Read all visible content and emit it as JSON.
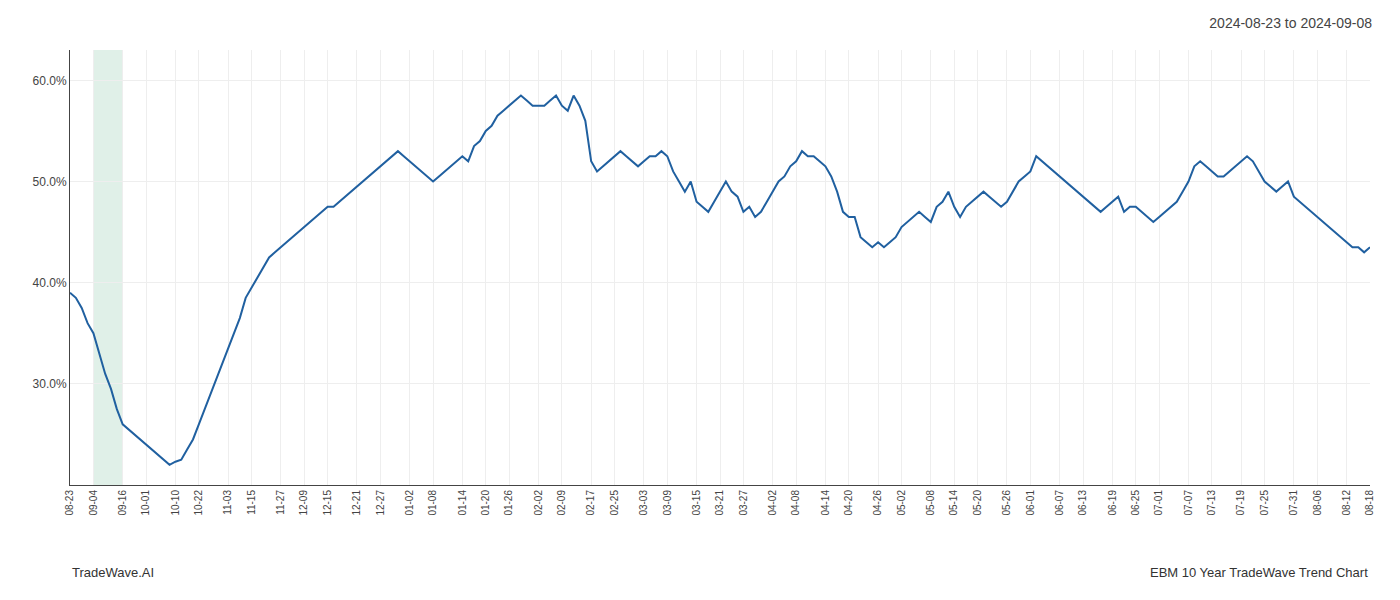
{
  "chart_data": {
    "type": "line",
    "title": "2024-08-23 to 2024-09-08",
    "annotations": [
      "TradeWave.AI",
      "EBM 10 Year TradeWave Trend Chart"
    ],
    "color": "#2060a0",
    "grid": true,
    "ylim": [
      20,
      63
    ],
    "yticks": [
      {
        "value": 30.0,
        "label": "30.0%"
      },
      {
        "value": 40.0,
        "label": "40.0%"
      },
      {
        "value": 50.0,
        "label": "50.0%"
      },
      {
        "value": 60.0,
        "label": "60.0%"
      }
    ],
    "highlight": {
      "from": "09-04",
      "to": "09-16",
      "color": "#e0f0e8"
    },
    "categories": [
      "08-23",
      null,
      null,
      null,
      "09-04",
      null,
      null,
      null,
      null,
      "09-16",
      null,
      null,
      null,
      "10-01",
      null,
      null,
      null,
      null,
      "10-10",
      null,
      null,
      null,
      "10-22",
      null,
      null,
      null,
      null,
      "11-03",
      null,
      null,
      null,
      "11-15",
      null,
      null,
      null,
      null,
      "11-27",
      null,
      null,
      null,
      "12-09",
      null,
      null,
      null,
      "12-15",
      null,
      null,
      null,
      null,
      "12-21",
      null,
      null,
      null,
      "12-27",
      null,
      null,
      null,
      null,
      "01-02",
      null,
      null,
      null,
      "01-08",
      null,
      null,
      null,
      null,
      "01-14",
      null,
      null,
      null,
      "01-20",
      null,
      null,
      null,
      "01-26",
      null,
      null,
      null,
      null,
      "02-02",
      null,
      null,
      null,
      "02-09",
      null,
      null,
      null,
      null,
      "02-17",
      null,
      null,
      null,
      "02-25",
      null,
      null,
      null,
      null,
      "03-03",
      null,
      null,
      null,
      "03-09",
      null,
      null,
      null,
      null,
      "03-15",
      null,
      null,
      null,
      "03-21",
      null,
      null,
      null,
      "03-27",
      null,
      null,
      null,
      null,
      "04-02",
      null,
      null,
      null,
      "04-08",
      null,
      null,
      null,
      null,
      "04-14",
      null,
      null,
      null,
      "04-20",
      null,
      null,
      null,
      null,
      "04-26",
      null,
      null,
      null,
      "05-02",
      null,
      null,
      null,
      null,
      "05-08",
      null,
      null,
      null,
      "05-14",
      null,
      null,
      null,
      "05-20",
      null,
      null,
      null,
      null,
      "05-26",
      null,
      null,
      null,
      "06-01",
      null,
      null,
      null,
      null,
      "06-07",
      null,
      null,
      null,
      "06-13",
      null,
      null,
      null,
      null,
      "06-19",
      null,
      null,
      null,
      "06-25",
      null,
      null,
      null,
      "07-01",
      null,
      null,
      null,
      null,
      "07-07",
      null,
      null,
      null,
      "07-13",
      null,
      null,
      null,
      null,
      "07-19",
      null,
      null,
      null,
      "07-25",
      null,
      null,
      null,
      null,
      "07-31",
      null,
      null,
      null,
      "08-06",
      null,
      null,
      null,
      null,
      "08-12",
      null,
      null,
      null,
      "08-18"
    ],
    "values": [
      39.0,
      38.5,
      37.5,
      36.0,
      35.0,
      33.0,
      31.0,
      29.5,
      27.5,
      26.0,
      25.5,
      25.0,
      24.5,
      24.0,
      23.5,
      23.0,
      22.5,
      22.0,
      22.3,
      22.5,
      23.5,
      24.5,
      26.0,
      27.5,
      29.0,
      30.5,
      32.0,
      33.5,
      35.0,
      36.5,
      38.5,
      39.5,
      40.5,
      41.5,
      42.5,
      43.0,
      43.5,
      44.0,
      44.5,
      45.0,
      45.5,
      46.0,
      46.5,
      47.0,
      47.5,
      47.5,
      48.0,
      48.5,
      49.0,
      49.5,
      50.0,
      50.5,
      51.0,
      51.5,
      52.0,
      52.5,
      53.0,
      52.5,
      52.0,
      51.5,
      51.0,
      50.5,
      50.0,
      50.5,
      51.0,
      51.5,
      52.0,
      52.5,
      52.0,
      53.5,
      54.0,
      55.0,
      55.5,
      56.5,
      57.0,
      57.5,
      58.0,
      58.5,
      58.0,
      57.5,
      57.5,
      57.5,
      58.0,
      58.5,
      57.5,
      57.0,
      58.5,
      57.5,
      56.0,
      52.0,
      51.0,
      51.5,
      52.0,
      52.5,
      53.0,
      52.5,
      52.0,
      51.5,
      52.0,
      52.5,
      52.5,
      53.0,
      52.5,
      51.0,
      50.0,
      49.0,
      50.0,
      48.0,
      47.5,
      47.0,
      48.0,
      49.0,
      50.0,
      49.0,
      48.5,
      47.0,
      47.5,
      46.5,
      47.0,
      48.0,
      49.0,
      50.0,
      50.5,
      51.5,
      52.0,
      53.0,
      52.5,
      52.5,
      52.0,
      51.5,
      50.5,
      49.0,
      47.0,
      46.5,
      46.5,
      44.5,
      44.0,
      43.5,
      44.0,
      43.5,
      44.0,
      44.5,
      45.5,
      46.0,
      46.5,
      47.0,
      46.5,
      46.0,
      47.5,
      48.0,
      49.0,
      47.5,
      46.5,
      47.5,
      48.0,
      48.5,
      49.0,
      48.5,
      48.0,
      47.5,
      48.0,
      49.0,
      50.0,
      50.5,
      51.0,
      52.5,
      52.0,
      51.5,
      51.0,
      50.5,
      50.0,
      49.5,
      49.0,
      48.5,
      48.0,
      47.5,
      47.0,
      47.5,
      48.0,
      48.5,
      47.0,
      47.5,
      47.5,
      47.0,
      46.5,
      46.0,
      46.5,
      47.0,
      47.5,
      48.0,
      49.0,
      50.0,
      51.5,
      52.0,
      51.5,
      51.0,
      50.5,
      50.5,
      51.0,
      51.5,
      52.0,
      52.5,
      52.0,
      51.0,
      50.0,
      49.5,
      49.0,
      49.5,
      50.0,
      48.5,
      48.0,
      47.5,
      47.0,
      46.5,
      46.0,
      45.5,
      45.0,
      44.5,
      44.0,
      43.5,
      43.5,
      43.0,
      43.5
    ]
  }
}
